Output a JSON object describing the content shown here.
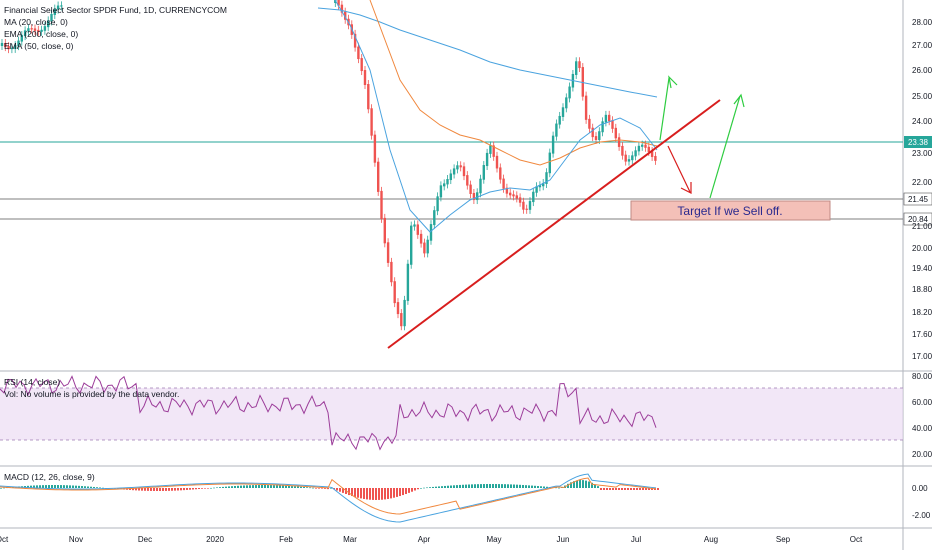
{
  "legend": {
    "symbol_line": "Financial Select Sector SPDR Fund, 1D, CURRENCYCOM",
    "ma20": "MA (20, close, 0)",
    "ema200": "EMA (200, close, 0)",
    "ema50": "EMA (50, close, 0)"
  },
  "rsi_legend": {
    "title": "RSI (14, close)",
    "vol_note": "Vol: No volume is provided by the data vendor."
  },
  "macd_legend": {
    "title": "MACD (12, 26, close, 9)"
  },
  "annotation": {
    "target_text": "Target If we Sell off."
  },
  "price_badges": {
    "last": "23.38",
    "level1": "21.45",
    "level2": "20.84"
  },
  "colors": {
    "up": "#26a69a",
    "down": "#ef5350",
    "ma20": "#4aa3df",
    "ema50": "#f0883e",
    "ema200": "#4aa3df",
    "rsi": "#9c3d9a",
    "trendline": "#d81e1e",
    "green_arrow": "#2ecc40",
    "red_arrow": "#d81e1e",
    "target_box": "#f4c0b8"
  },
  "chart_data": {
    "type": "line",
    "main_pane": {
      "y_ticks": [
        "28.00",
        "27.00",
        "26.00",
        "25.00",
        "24.00",
        "23.00",
        "22.00",
        "21.00",
        "20.00",
        "19.40",
        "18.80",
        "18.20",
        "17.60",
        "17.00"
      ],
      "last_price": 23.38,
      "horizontal_levels": [
        23.38,
        21.45,
        20.84
      ]
    },
    "x_ticks": [
      "Oct",
      "Nov",
      "Dec",
      "2020",
      "Feb",
      "Mar",
      "Apr",
      "May",
      "Jun",
      "Jul",
      "Aug",
      "Sep",
      "Oct"
    ],
    "rsi_pane": {
      "y_ticks": [
        "80.00",
        "60.00",
        "40.00",
        "20.00"
      ],
      "band": [
        30,
        70
      ]
    },
    "macd_pane": {
      "y_ticks": [
        "0.00",
        "-2.00"
      ]
    }
  }
}
